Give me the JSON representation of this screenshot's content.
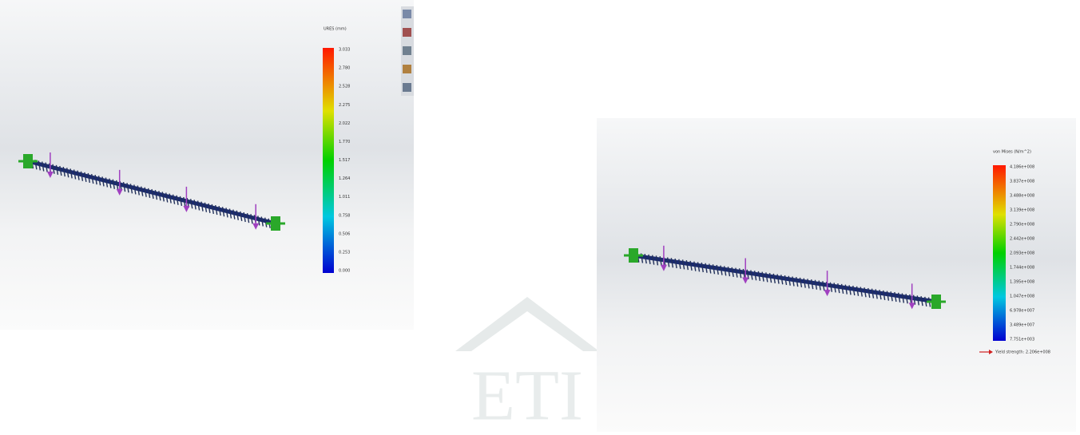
{
  "left_panel": {
    "legend": {
      "title": "URES (mm)",
      "ticks": [
        "3.033",
        "2.780",
        "2.528",
        "2.275",
        "2.022",
        "1.770",
        "1.517",
        "1.264",
        "1.011",
        "0.758",
        "0.506",
        "0.253",
        "0.000"
      ]
    }
  },
  "right_panel": {
    "legend": {
      "title": "von Mises (N/m^2)",
      "ticks": [
        "4.186e+008",
        "3.837e+008",
        "3.488e+008",
        "3.139e+008",
        "2.790e+008",
        "2.442e+008",
        "2.093e+008",
        "1.744e+008",
        "1.395e+008",
        "1.047e+008",
        "6.978e+007",
        "3.489e+007",
        "7.751e+003"
      ],
      "yield_label": "Yield strength: 2.206e+008"
    }
  },
  "watermark": "ETI"
}
